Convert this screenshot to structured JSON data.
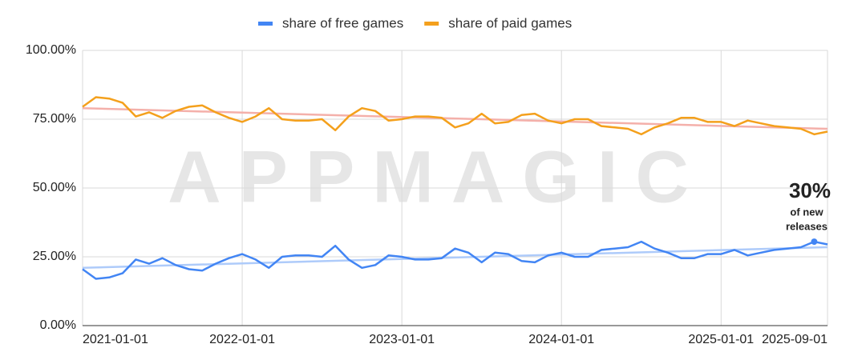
{
  "chart_data": {
    "type": "line",
    "categories": [
      "2021-01-01",
      null,
      null,
      null,
      null,
      null,
      null,
      null,
      null,
      null,
      null,
      null,
      "2022-01-01",
      null,
      null,
      null,
      null,
      null,
      null,
      null,
      null,
      null,
      null,
      null,
      "2023-01-01",
      null,
      null,
      null,
      null,
      null,
      null,
      null,
      null,
      null,
      null,
      null,
      "2024-01-01",
      null,
      null,
      null,
      null,
      null,
      null,
      null,
      null,
      null,
      null,
      null,
      "2025-01-01",
      null,
      null,
      null,
      null,
      null,
      null,
      null,
      "2025-09-01"
    ],
    "series": [
      {
        "name": "share of free games",
        "color": "#4285f4",
        "values": [
          20.5,
          17,
          17.5,
          19,
          24,
          22.5,
          24.5,
          22,
          20.5,
          20,
          22.5,
          24.5,
          26,
          24,
          21,
          25,
          25.5,
          25.5,
          25,
          29,
          24,
          21,
          22,
          25.5,
          25,
          24,
          24,
          24.5,
          28,
          26.5,
          23,
          26.5,
          26,
          23.5,
          23,
          25.5,
          26.5,
          25,
          25,
          27.5,
          28,
          28.5,
          30.5,
          28,
          26.5,
          24.5,
          24.5,
          26,
          26,
          27.5,
          25.5,
          26.5,
          27.5,
          28,
          28.5,
          30.5,
          29.5
        ]
      },
      {
        "name": "share of paid games",
        "color": "#f4a01c",
        "values": [
          79.5,
          83,
          82.5,
          81,
          76,
          77.5,
          75.5,
          78,
          79.5,
          80,
          77.5,
          75.5,
          74,
          76,
          79,
          75,
          74.5,
          74.5,
          75,
          71,
          76,
          79,
          78,
          74.5,
          75,
          76,
          76,
          75.5,
          72,
          73.5,
          77,
          73.5,
          74,
          76.5,
          77,
          74.5,
          73.5,
          75,
          75,
          72.5,
          72,
          71.5,
          69.5,
          72,
          73.5,
          75.5,
          75.5,
          74,
          74,
          72.5,
          74.5,
          73.5,
          72.5,
          72,
          71.5,
          69.5,
          70.5
        ]
      }
    ],
    "trendlines": [
      {
        "color": "#aecbfa",
        "values": [
          21,
          28.5
        ]
      },
      {
        "color": "#f4b0aa",
        "values": [
          79,
          71.5
        ]
      }
    ],
    "ylim": [
      0,
      100
    ],
    "yticks": [
      {
        "value": 0,
        "label": "0.00%"
      },
      {
        "value": 25,
        "label": "25.00%"
      },
      {
        "value": 50,
        "label": "50.00%"
      },
      {
        "value": 75,
        "label": "75.00%"
      },
      {
        "value": 100,
        "label": "100.00%"
      }
    ],
    "grid": true,
    "legend": "top",
    "annotation": {
      "title": "30%",
      "text": [
        "of new",
        "releases"
      ]
    },
    "watermark": "APPMAGIC"
  }
}
